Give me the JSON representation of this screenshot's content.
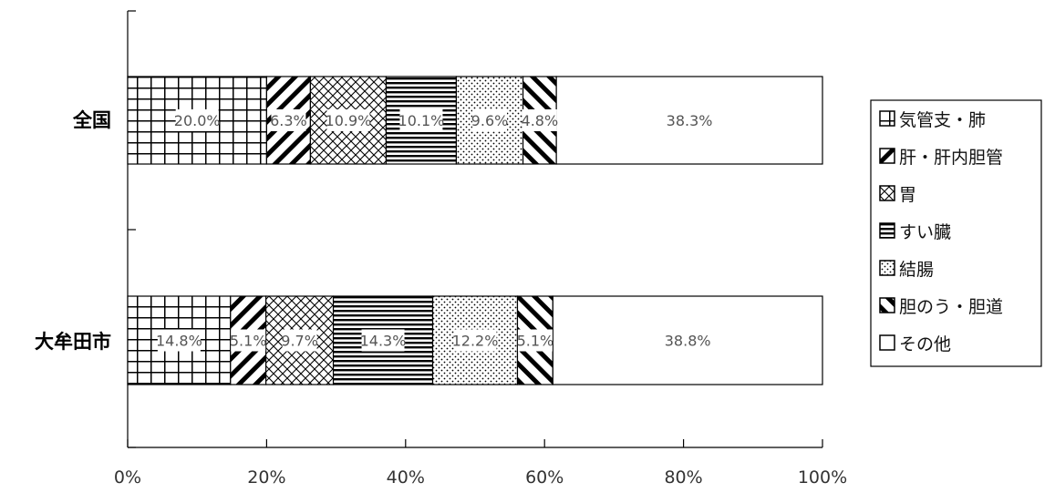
{
  "chart_data": {
    "type": "bar",
    "orientation": "horizontal",
    "stacked": "percent",
    "categories": [
      "全国",
      "大牟田市"
    ],
    "series": [
      {
        "name": "気管支・肺",
        "pattern": "grid",
        "values": [
          20.0,
          14.8
        ],
        "labels": [
          "20.0%",
          "14.8%"
        ]
      },
      {
        "name": "肝・肝内胆管",
        "pattern": "diag-up",
        "values": [
          6.3,
          5.1
        ],
        "labels": [
          "6.3%",
          "5.1%"
        ]
      },
      {
        "name": "胃",
        "pattern": "crosshatch",
        "values": [
          10.9,
          9.7
        ],
        "labels": [
          "10.9%",
          "9.7%"
        ]
      },
      {
        "name": "すい臓",
        "pattern": "horizontal",
        "values": [
          10.1,
          14.3
        ],
        "labels": [
          "10.1%",
          "14.3%"
        ]
      },
      {
        "name": "結腸",
        "pattern": "dots",
        "values": [
          9.6,
          12.2
        ],
        "labels": [
          "9.6%",
          "12.2%"
        ]
      },
      {
        "name": "胆のう・胆道",
        "pattern": "diag-down",
        "values": [
          4.8,
          5.1
        ],
        "labels": [
          "4.8%",
          "5.1%"
        ]
      },
      {
        "name": "その他",
        "pattern": "blank",
        "values": [
          38.3,
          38.8
        ],
        "labels": [
          "38.3%",
          "38.8%"
        ]
      }
    ],
    "xlim": [
      0,
      100
    ],
    "x_ticks": [
      "0%",
      "20%",
      "40%",
      "60%",
      "80%",
      "100%"
    ],
    "legend_position": "right",
    "grid": false
  }
}
